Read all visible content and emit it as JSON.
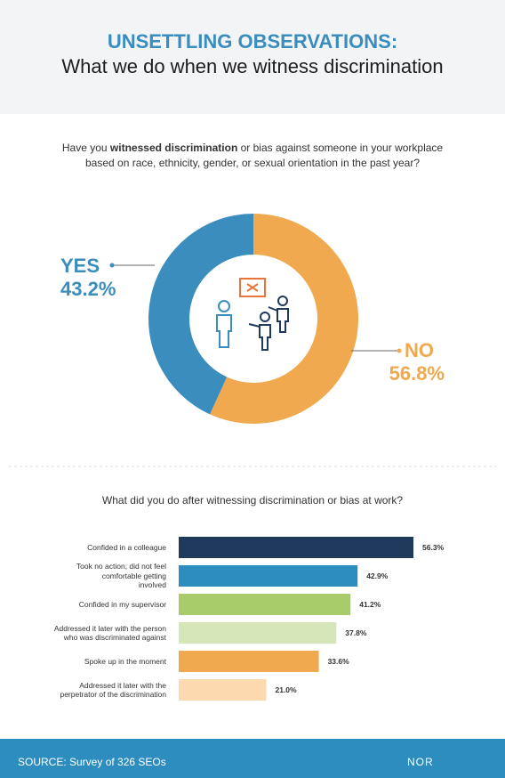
{
  "header": {
    "title": "UNSETTLING OBSERVATIONS:",
    "subtitle": "What we do when we witness discrimination"
  },
  "chart_data": [
    {
      "type": "donut",
      "title": [
        "Have you ",
        "witnessed discrimination",
        " or bias against someone in your workplace based on race, ethnicity, gender, or sexual orientation in the past year?"
      ],
      "categories": [
        "YES",
        "NO"
      ],
      "values": [
        43.2,
        56.8
      ],
      "value_labels": [
        "43.2%",
        "56.8%"
      ],
      "colors": [
        "#3b8dbd",
        "#f0a94e"
      ]
    },
    {
      "type": "hbar",
      "title": "What did you do after witnessing discrimination or bias at work?",
      "categories": [
        "Confided in a colleague",
        "Took no action; did not feel\ncomfortable getting\ninvolved",
        "Confided in my supervisor",
        "Addressed it later with the person\nwho was discriminated against",
        "Spoke up in the moment",
        "Addressed it later with the\nperpetrator of the discrimination"
      ],
      "values": [
        56.3,
        42.9,
        41.2,
        37.8,
        33.6,
        21.0
      ],
      "value_labels": [
        "56.3%",
        "42.9%",
        "41.2%",
        "37.8%",
        "33.6%",
        "21.0%"
      ],
      "colors": [
        "#1f3a5c",
        "#2e8dbf",
        "#a9cc6b",
        "#d6e6b8",
        "#f0a94e",
        "#fdd9b0"
      ]
    }
  ],
  "footer": {
    "source": "SOURCE: Survey of 326 SEOs",
    "brand": "NOR"
  }
}
